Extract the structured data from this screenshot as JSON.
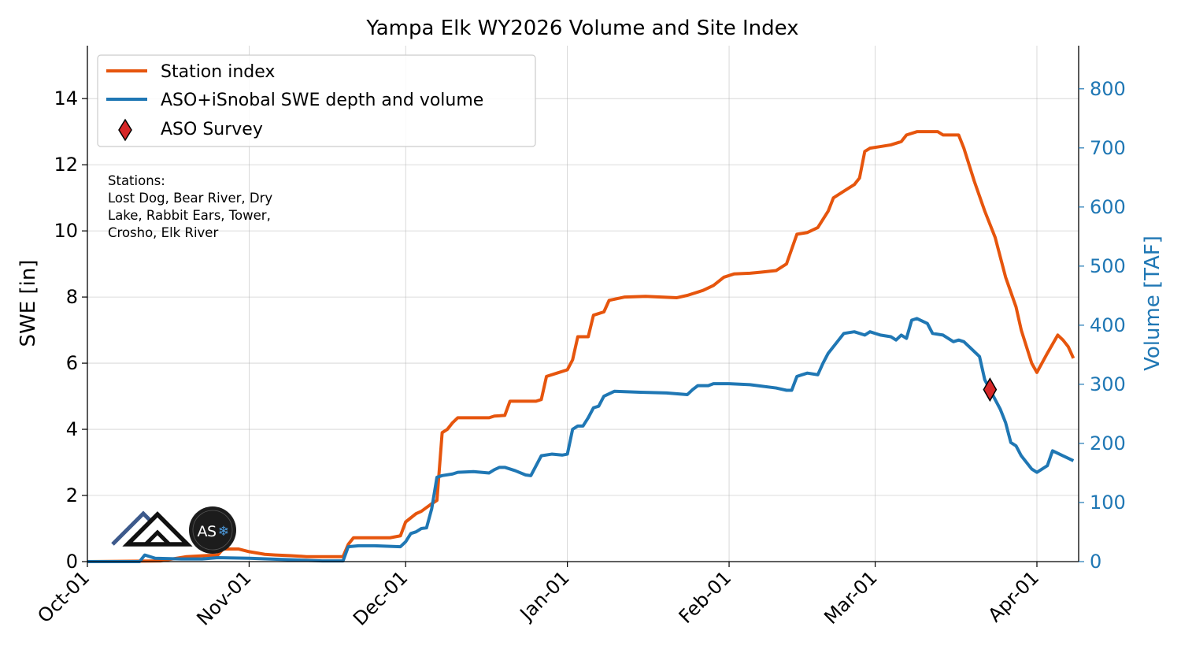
{
  "chart_data": {
    "type": "line",
    "title": "Yampa Elk WY2026 Volume and Site Index",
    "ylabel": "SWE [in]",
    "ylabel_right": "Volume [TAF]",
    "ylim": [
      0,
      15.6
    ],
    "ylim_right": [
      0,
      873
    ],
    "xlim": [
      "2025-10-01",
      "2026-04-09"
    ],
    "x_ticks": [
      {
        "date": "2025-10-01",
        "label": "Oct-01"
      },
      {
        "date": "2025-11-01",
        "label": "Nov-01"
      },
      {
        "date": "2025-12-01",
        "label": "Dec-01"
      },
      {
        "date": "2026-01-01",
        "label": "Jan-01"
      },
      {
        "date": "2026-02-01",
        "label": "Feb-01"
      },
      {
        "date": "2026-03-01",
        "label": "Mar-01"
      },
      {
        "date": "2026-04-01",
        "label": "Apr-01"
      }
    ],
    "y_ticks_left": [
      "0",
      "2",
      "4",
      "6",
      "8",
      "10",
      "12",
      "14"
    ],
    "y_ticks_right": [
      "0",
      "100",
      "200",
      "300",
      "400",
      "500",
      "600",
      "700",
      "800"
    ],
    "grid": true,
    "legend_position": "upper-left",
    "series": [
      {
        "name": "Station index",
        "axis": "left",
        "color": "#e6550d",
        "points": [
          [
            "2025-10-01",
            0
          ],
          [
            "2025-10-15",
            0.02
          ],
          [
            "2025-10-20",
            0.15
          ],
          [
            "2025-10-26",
            0.2
          ],
          [
            "2025-10-27",
            0.38
          ],
          [
            "2025-10-30",
            0.38
          ],
          [
            "2025-11-01",
            0.3
          ],
          [
            "2025-11-04",
            0.22
          ],
          [
            "2025-11-06",
            0.2
          ],
          [
            "2025-11-09",
            0.18
          ],
          [
            "2025-11-12",
            0.15
          ],
          [
            "2025-11-16",
            0.15
          ],
          [
            "2025-11-19",
            0.15
          ],
          [
            "2025-11-20",
            0.52
          ],
          [
            "2025-11-21",
            0.72
          ],
          [
            "2025-11-24",
            0.72
          ],
          [
            "2025-11-28",
            0.72
          ],
          [
            "2025-11-30",
            0.78
          ],
          [
            "2025-12-01",
            1.2
          ],
          [
            "2025-12-03",
            1.45
          ],
          [
            "2025-12-04",
            1.52
          ],
          [
            "2025-12-06",
            1.75
          ],
          [
            "2025-12-07",
            1.85
          ],
          [
            "2025-12-08",
            3.9
          ],
          [
            "2025-12-09",
            4.0
          ],
          [
            "2025-12-10",
            4.2
          ],
          [
            "2025-12-11",
            4.35
          ],
          [
            "2025-12-17",
            4.35
          ],
          [
            "2025-12-18",
            4.4
          ],
          [
            "2025-12-20",
            4.42
          ],
          [
            "2025-12-21",
            4.85
          ],
          [
            "2025-12-24",
            4.85
          ],
          [
            "2025-12-26",
            4.85
          ],
          [
            "2025-12-27",
            4.9
          ],
          [
            "2025-12-28",
            5.6
          ],
          [
            "2025-12-30",
            5.7
          ],
          [
            "2026-01-01",
            5.8
          ],
          [
            "2026-01-02",
            6.1
          ],
          [
            "2026-01-03",
            6.8
          ],
          [
            "2026-01-05",
            6.8
          ],
          [
            "2026-01-06",
            7.45
          ],
          [
            "2026-01-08",
            7.55
          ],
          [
            "2026-01-09",
            7.9
          ],
          [
            "2026-01-12",
            8.0
          ],
          [
            "2026-01-16",
            8.02
          ],
          [
            "2026-01-19",
            8.0
          ],
          [
            "2026-01-22",
            7.98
          ],
          [
            "2026-01-24",
            8.05
          ],
          [
            "2026-01-27",
            8.2
          ],
          [
            "2026-01-29",
            8.35
          ],
          [
            "2026-01-31",
            8.6
          ],
          [
            "2026-02-02",
            8.7
          ],
          [
            "2026-02-05",
            8.72
          ],
          [
            "2026-02-07",
            8.75
          ],
          [
            "2026-02-10",
            8.8
          ],
          [
            "2026-02-12",
            9.0
          ],
          [
            "2026-02-14",
            9.9
          ],
          [
            "2026-02-16",
            9.95
          ],
          [
            "2026-02-18",
            10.1
          ],
          [
            "2026-02-20",
            10.6
          ],
          [
            "2026-02-21",
            11.0
          ],
          [
            "2026-02-23",
            11.2
          ],
          [
            "2026-02-25",
            11.4
          ],
          [
            "2026-02-26",
            11.6
          ],
          [
            "2026-02-27",
            12.4
          ],
          [
            "2026-02-28",
            12.5
          ],
          [
            "2026-03-02",
            12.55
          ],
          [
            "2026-03-04",
            12.6
          ],
          [
            "2026-03-06",
            12.7
          ],
          [
            "2026-03-07",
            12.9
          ],
          [
            "2026-03-09",
            13.0
          ],
          [
            "2026-03-11",
            13.0
          ],
          [
            "2026-03-13",
            13.0
          ],
          [
            "2026-03-14",
            12.9
          ],
          [
            "2026-03-17",
            12.9
          ],
          [
            "2026-03-18",
            12.5
          ],
          [
            "2026-03-20",
            11.5
          ],
          [
            "2026-03-22",
            10.6
          ],
          [
            "2026-03-24",
            9.8
          ],
          [
            "2026-03-26",
            8.6
          ],
          [
            "2026-03-28",
            7.7
          ],
          [
            "2026-03-29",
            7.0
          ],
          [
            "2026-03-31",
            6.0
          ],
          [
            "2026-04-01",
            5.72
          ],
          [
            "2026-04-03",
            6.3
          ],
          [
            "2026-04-05",
            6.85
          ],
          [
            "2026-04-06",
            6.7
          ],
          [
            "2026-04-07",
            6.5
          ],
          [
            "2026-04-08",
            6.15
          ]
        ]
      },
      {
        "name": "ASO+iSnobal SWE depth and volume",
        "axis": "left",
        "color": "#1f77b4",
        "points": [
          [
            "2025-10-01",
            0
          ],
          [
            "2025-10-11",
            0
          ],
          [
            "2025-10-12",
            0.2
          ],
          [
            "2025-10-14",
            0.1
          ],
          [
            "2025-10-19",
            0.08
          ],
          [
            "2025-10-23",
            0.08
          ],
          [
            "2025-10-26",
            0.12
          ],
          [
            "2025-11-01",
            0.1
          ],
          [
            "2025-11-10",
            0.05
          ],
          [
            "2025-11-15",
            0.02
          ],
          [
            "2025-11-19",
            0.02
          ],
          [
            "2025-11-20",
            0.45
          ],
          [
            "2025-11-22",
            0.48
          ],
          [
            "2025-11-25",
            0.48
          ],
          [
            "2025-11-30",
            0.45
          ],
          [
            "2025-12-01",
            0.6
          ],
          [
            "2025-12-02",
            0.85
          ],
          [
            "2025-12-03",
            0.9
          ],
          [
            "2025-12-04",
            1.0
          ],
          [
            "2025-12-05",
            1.02
          ],
          [
            "2025-12-06",
            1.6
          ],
          [
            "2025-12-07",
            2.55
          ],
          [
            "2025-12-08",
            2.6
          ],
          [
            "2025-12-10",
            2.65
          ],
          [
            "2025-12-11",
            2.7
          ],
          [
            "2025-12-14",
            2.72
          ],
          [
            "2025-12-17",
            2.68
          ],
          [
            "2025-12-18",
            2.78
          ],
          [
            "2025-12-19",
            2.85
          ],
          [
            "2025-12-20",
            2.85
          ],
          [
            "2025-12-22",
            2.75
          ],
          [
            "2025-12-24",
            2.62
          ],
          [
            "2025-12-25",
            2.6
          ],
          [
            "2025-12-27",
            3.2
          ],
          [
            "2025-12-29",
            3.25
          ],
          [
            "2025-12-31",
            3.22
          ],
          [
            "2026-01-01",
            3.25
          ],
          [
            "2026-01-02",
            4.0
          ],
          [
            "2026-01-03",
            4.1
          ],
          [
            "2026-01-04",
            4.1
          ],
          [
            "2026-01-05",
            4.35
          ],
          [
            "2026-01-06",
            4.65
          ],
          [
            "2026-01-07",
            4.7
          ],
          [
            "2026-01-08",
            5.0
          ],
          [
            "2026-01-10",
            5.15
          ],
          [
            "2026-01-15",
            5.12
          ],
          [
            "2026-01-20",
            5.1
          ],
          [
            "2026-01-24",
            5.05
          ],
          [
            "2026-01-25",
            5.2
          ],
          [
            "2026-01-26",
            5.32
          ],
          [
            "2026-01-28",
            5.32
          ],
          [
            "2026-01-29",
            5.38
          ],
          [
            "2026-02-01",
            5.38
          ],
          [
            "2026-02-05",
            5.35
          ],
          [
            "2026-02-10",
            5.25
          ],
          [
            "2026-02-12",
            5.18
          ],
          [
            "2026-02-13",
            5.18
          ],
          [
            "2026-02-14",
            5.6
          ],
          [
            "2026-02-16",
            5.7
          ],
          [
            "2026-02-18",
            5.65
          ],
          [
            "2026-02-19",
            6.0
          ],
          [
            "2026-02-20",
            6.3
          ],
          [
            "2026-02-22",
            6.7
          ],
          [
            "2026-02-23",
            6.9
          ],
          [
            "2026-02-25",
            6.95
          ],
          [
            "2026-02-27",
            6.85
          ],
          [
            "2026-02-28",
            6.95
          ],
          [
            "2026-03-02",
            6.85
          ],
          [
            "2026-03-04",
            6.8
          ],
          [
            "2026-03-05",
            6.7
          ],
          [
            "2026-03-06",
            6.85
          ],
          [
            "2026-03-07",
            6.75
          ],
          [
            "2026-03-08",
            7.3
          ],
          [
            "2026-03-09",
            7.35
          ],
          [
            "2026-03-11",
            7.2
          ],
          [
            "2026-03-12",
            6.9
          ],
          [
            "2026-03-14",
            6.85
          ],
          [
            "2026-03-16",
            6.65
          ],
          [
            "2026-03-17",
            6.7
          ],
          [
            "2026-03-18",
            6.65
          ],
          [
            "2026-03-19",
            6.5
          ],
          [
            "2026-03-21",
            6.2
          ],
          [
            "2026-03-22",
            5.5
          ],
          [
            "2026-03-24",
            4.9
          ],
          [
            "2026-03-25",
            4.6
          ],
          [
            "2026-03-26",
            4.2
          ],
          [
            "2026-03-27",
            3.6
          ],
          [
            "2026-03-28",
            3.5
          ],
          [
            "2026-03-29",
            3.2
          ],
          [
            "2026-03-31",
            2.8
          ],
          [
            "2026-04-01",
            2.7
          ],
          [
            "2026-04-03",
            2.9
          ],
          [
            "2026-04-04",
            3.35
          ],
          [
            "2026-04-06",
            3.2
          ],
          [
            "2026-04-08",
            3.05
          ]
        ]
      }
    ],
    "markers": [
      {
        "name": "ASO Survey",
        "date": "2026-03-23",
        "value": 5.2,
        "color": "#d62728"
      }
    ],
    "annotation": {
      "lines": [
        "Stations:",
        "Lost Dog, Bear River, Dry",
        "Lake, Rabbit Ears, Tower,",
        "Crosho, Elk River"
      ]
    },
    "logos": [
      "mountain-logo",
      "aso-logo"
    ]
  }
}
